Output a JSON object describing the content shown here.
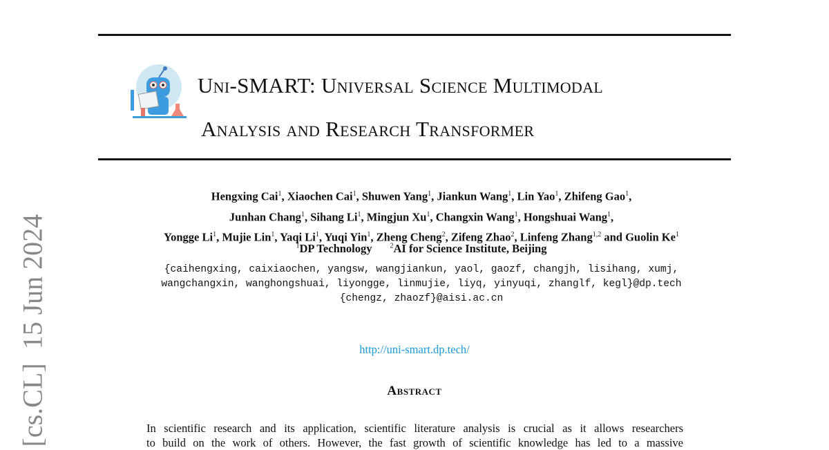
{
  "side_stamp": "[cs.CL]  15 Jun 2024",
  "logo": {
    "icon": "robot-scientist-reading-paper-logo"
  },
  "title": {
    "line1": "Uni-SMART: Universal Science Multimodal",
    "line2": "Analysis and Research Transformer"
  },
  "authors": {
    "line1": [
      {
        "name": "Hengxing Cai",
        "aff": "1"
      },
      {
        "name": "Xiaochen Cai",
        "aff": "1"
      },
      {
        "name": "Shuwen Yang",
        "aff": "1"
      },
      {
        "name": "Jiankun Wang",
        "aff": "1"
      },
      {
        "name": "Lin Yao",
        "aff": "1"
      },
      {
        "name": "Zhifeng Gao",
        "aff": "1"
      }
    ],
    "line2": [
      {
        "name": "Junhan Chang",
        "aff": "1"
      },
      {
        "name": "Sihang Li",
        "aff": "1"
      },
      {
        "name": "Mingjun Xu",
        "aff": "1"
      },
      {
        "name": "Changxin Wang",
        "aff": "1"
      },
      {
        "name": "Hongshuai Wang",
        "aff": "1"
      }
    ],
    "line3": [
      {
        "name": "Yongge Li",
        "aff": "1"
      },
      {
        "name": "Mujie Lin",
        "aff": "1"
      },
      {
        "name": "Yaqi Li",
        "aff": "1"
      },
      {
        "name": "Yuqi Yin",
        "aff": "1"
      },
      {
        "name": "Zheng Cheng",
        "aff": "2"
      },
      {
        "name": "Zifeng Zhao",
        "aff": "2"
      },
      {
        "name": "Linfeng Zhang",
        "aff": "1,2"
      },
      {
        "name": "Guolin Ke",
        "aff": "1"
      }
    ],
    "conjunction": "and"
  },
  "affiliations": [
    {
      "num": "1",
      "name": "DP Technology"
    },
    {
      "num": "2",
      "name": "AI for Science Institute, Beijing"
    }
  ],
  "emails": [
    "{caihengxing, caixiaochen, yangsw, wangjiankun, yaol, gaozf, changjh, lisihang, xumj,",
    "wangchangxin, wanghongshuai, liyongge, linmujie, liyq, yinyuqi, zhanglf, kegl}@dp.tech",
    "{chengz, zhaozf}@aisi.ac.cn"
  ],
  "link": "http://uni-smart.dp.tech/",
  "abstract": {
    "title": "Abstract",
    "text": [
      "In scientific research and its application, scientific literature analysis is crucial as it allows researchers",
      "to build on the work of others. However, the fast growth of scientific knowledge has led to a massive"
    ]
  },
  "colors": {
    "link": "#1a9ad9",
    "stamp": "#888888"
  }
}
